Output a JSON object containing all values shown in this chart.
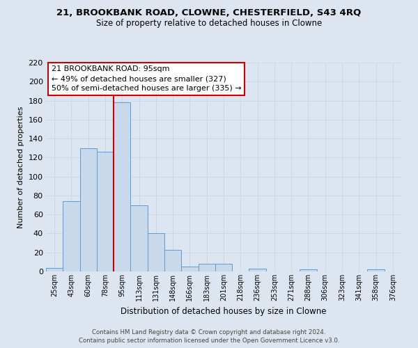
{
  "title1": "21, BROOKBANK ROAD, CLOWNE, CHESTERFIELD, S43 4RQ",
  "title2": "Size of property relative to detached houses in Clowne",
  "xlabel": "Distribution of detached houses by size in Clowne",
  "ylabel": "Number of detached properties",
  "bar_labels": [
    "25sqm",
    "43sqm",
    "60sqm",
    "78sqm",
    "95sqm",
    "113sqm",
    "131sqm",
    "148sqm",
    "166sqm",
    "183sqm",
    "201sqm",
    "218sqm",
    "236sqm",
    "253sqm",
    "271sqm",
    "288sqm",
    "306sqm",
    "323sqm",
    "341sqm",
    "358sqm",
    "376sqm"
  ],
  "bar_heights": [
    4,
    74,
    130,
    126,
    178,
    70,
    40,
    23,
    5,
    8,
    8,
    0,
    3,
    0,
    0,
    2,
    0,
    0,
    0,
    2,
    0
  ],
  "bar_color": "#c9d9ec",
  "bar_edge_color": "#5b9bd5",
  "vline_x_idx": 4,
  "vline_color": "#cc0000",
  "annotation_title": "21 BROOKBANK ROAD: 95sqm",
  "annotation_line1": "← 49% of detached houses are smaller (327)",
  "annotation_line2": "50% of semi-detached houses are larger (335) →",
  "annotation_box_facecolor": "#ffffff",
  "annotation_box_edgecolor": "#cc0000",
  "ylim": [
    0,
    220
  ],
  "yticks": [
    0,
    20,
    40,
    60,
    80,
    100,
    120,
    140,
    160,
    180,
    200,
    220
  ],
  "footer1": "Contains HM Land Registry data © Crown copyright and database right 2024.",
  "footer2": "Contains public sector information licensed under the Open Government Licence v3.0.",
  "grid_color": "#ccd5e0",
  "bg_color": "#dde6f0",
  "plot_bg_color": "#dde6f0",
  "spine_color": "#aabbcc"
}
